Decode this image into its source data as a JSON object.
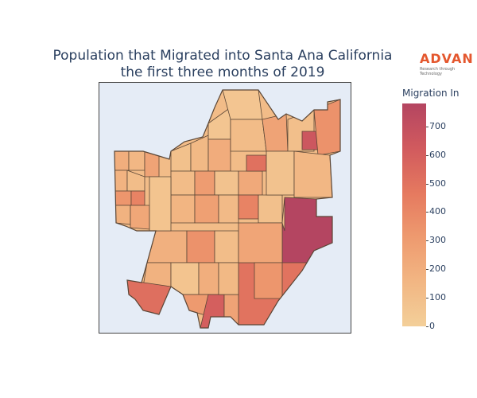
{
  "title": {
    "line1": "Population that Migrated into Santa Ana California",
    "line2": "the first three months of 2019"
  },
  "logo": {
    "name": "ADVAN",
    "tagline": "Research through Technology"
  },
  "colorbar": {
    "title": "Migration In",
    "ticks": [
      "700",
      "600",
      "500",
      "400",
      "300",
      "200",
      "100",
      "0"
    ],
    "range": [
      0,
      780
    ],
    "colors": [
      "#f3cf99",
      "#f2b683",
      "#ee9a6f",
      "#e5795f",
      "#d15a5e",
      "#b44561"
    ]
  },
  "map": {
    "background": "#e5ecf6",
    "border_color": "#444444",
    "outline_color": "#5a4636",
    "tracts": [
      {
        "id": "nw-w1",
        "value": 200
      },
      {
        "id": "nw-w2",
        "value": 150
      },
      {
        "id": "nw-w3",
        "value": 260
      },
      {
        "id": "nw-w4",
        "value": 170
      },
      {
        "id": "nw-w5",
        "value": 110
      },
      {
        "id": "nw-w6",
        "value": 330
      },
      {
        "id": "nw-w7",
        "value": 420
      },
      {
        "id": "nw-w8",
        "value": 180
      },
      {
        "id": "nw-w9",
        "value": 240
      },
      {
        "id": "c1",
        "value": 90
      },
      {
        "id": "c2",
        "value": 140
      },
      {
        "id": "c3",
        "value": 60
      },
      {
        "id": "c4",
        "value": 210
      },
      {
        "id": "c5",
        "value": 120
      },
      {
        "id": "c6",
        "value": 300
      },
      {
        "id": "c7",
        "value": 80
      },
      {
        "id": "c8",
        "value": 230
      },
      {
        "id": "c9",
        "value": 160
      },
      {
        "id": "c10",
        "value": 280
      },
      {
        "id": "c11",
        "value": 130
      },
      {
        "id": "c12",
        "value": 420
      },
      {
        "id": "c13",
        "value": 95
      },
      {
        "id": "c14",
        "value": 190
      },
      {
        "id": "c15",
        "value": 350
      },
      {
        "id": "n1",
        "value": 60
      },
      {
        "id": "n2",
        "value": 120
      },
      {
        "id": "n3",
        "value": 260
      },
      {
        "id": "n4",
        "value": 100
      },
      {
        "id": "n5",
        "value": 510
      },
      {
        "id": "n6",
        "value": 650
      },
      {
        "id": "n7",
        "value": 350
      },
      {
        "id": "n8",
        "value": 80
      },
      {
        "id": "n9",
        "value": 150
      },
      {
        "id": "e-big",
        "value": 780
      },
      {
        "id": "se-big",
        "value": 500
      },
      {
        "id": "s1",
        "value": 110
      },
      {
        "id": "s2",
        "value": 250
      },
      {
        "id": "s3",
        "value": 180
      },
      {
        "id": "s4",
        "value": 70
      },
      {
        "id": "s5",
        "value": 200
      },
      {
        "id": "s6",
        "value": 520
      },
      {
        "id": "s7",
        "value": 310
      },
      {
        "id": "s8",
        "value": 600
      },
      {
        "id": "s9",
        "value": 260
      },
      {
        "id": "s10",
        "value": 140
      },
      {
        "id": "s11",
        "value": 90
      },
      {
        "id": "s12",
        "value": 330
      },
      {
        "id": "w-strip",
        "value": 70
      }
    ]
  }
}
